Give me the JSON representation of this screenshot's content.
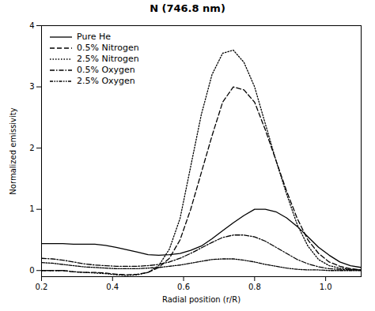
{
  "chart_data": {
    "type": "line",
    "title": "N (746.8 nm)",
    "xlabel": "Radial position (r/R)",
    "ylabel": "Normalized emissivity",
    "xlim": [
      0.2,
      1.1
    ],
    "ylim": [
      -0.1,
      4.0
    ],
    "xticks": [
      0.2,
      0.4,
      0.6,
      0.8,
      {
        "value": 1.0,
        "label": "1.0"
      }
    ],
    "yticks": [
      0,
      1,
      2,
      3,
      4
    ],
    "legend": "upper left",
    "x": [
      0.2,
      0.23,
      0.26,
      0.29,
      0.32,
      0.35,
      0.38,
      0.41,
      0.44,
      0.47,
      0.5,
      0.53,
      0.56,
      0.59,
      0.62,
      0.65,
      0.68,
      0.71,
      0.74,
      0.77,
      0.8,
      0.83,
      0.86,
      0.89,
      0.92,
      0.95,
      0.98,
      1.01,
      1.04,
      1.07,
      1.1
    ],
    "series": [
      {
        "name": "Pure He",
        "color": "#000000",
        "line_style": "solid",
        "values": [
          0.44,
          0.44,
          0.44,
          0.43,
          0.43,
          0.43,
          0.41,
          0.38,
          0.34,
          0.3,
          0.26,
          0.25,
          0.26,
          0.28,
          0.33,
          0.4,
          0.52,
          0.65,
          0.78,
          0.9,
          1.0,
          1.0,
          0.96,
          0.86,
          0.72,
          0.55,
          0.38,
          0.25,
          0.14,
          0.08,
          0.05
        ]
      },
      {
        "name": "0.5% Nitrogen",
        "color": "#000000",
        "line_style": "dashed",
        "values": [
          0.0,
          0.0,
          0.0,
          -0.02,
          -0.03,
          -0.03,
          -0.04,
          -0.06,
          -0.07,
          -0.06,
          -0.03,
          0.05,
          0.2,
          0.5,
          1.0,
          1.6,
          2.2,
          2.75,
          3.0,
          2.95,
          2.75,
          2.3,
          1.8,
          1.3,
          0.85,
          0.5,
          0.28,
          0.14,
          0.07,
          0.03,
          0.01
        ]
      },
      {
        "name": "2.5% Nitrogen",
        "color": "#000000",
        "line_style": "dotted",
        "values": [
          0.0,
          0.0,
          0.0,
          -0.02,
          -0.03,
          -0.04,
          -0.05,
          -0.07,
          -0.08,
          -0.07,
          -0.03,
          0.08,
          0.35,
          0.85,
          1.7,
          2.55,
          3.2,
          3.55,
          3.6,
          3.4,
          3.0,
          2.4,
          1.8,
          1.25,
          0.75,
          0.4,
          0.18,
          0.08,
          0.04,
          0.02,
          0.01
        ]
      },
      {
        "name": "0.5% Oxygen",
        "color": "#000000",
        "line_style": "dashdot",
        "values": [
          0.2,
          0.19,
          0.17,
          0.14,
          0.11,
          0.09,
          0.08,
          0.07,
          0.07,
          0.07,
          0.08,
          0.1,
          0.14,
          0.2,
          0.28,
          0.37,
          0.46,
          0.54,
          0.58,
          0.58,
          0.55,
          0.48,
          0.38,
          0.28,
          0.18,
          0.11,
          0.06,
          0.03,
          0.02,
          0.01,
          0.01
        ]
      },
      {
        "name": "2.5% Oxygen",
        "color": "#000000",
        "line_style": "densely_dashdotdotted",
        "values": [
          0.13,
          0.12,
          0.1,
          0.08,
          0.06,
          0.05,
          0.04,
          0.03,
          0.03,
          0.03,
          0.04,
          0.05,
          0.07,
          0.09,
          0.12,
          0.15,
          0.18,
          0.19,
          0.19,
          0.17,
          0.14,
          0.1,
          0.07,
          0.04,
          0.02,
          0.01,
          0.01,
          0.0,
          0.0,
          0.0,
          0.0
        ]
      }
    ]
  }
}
